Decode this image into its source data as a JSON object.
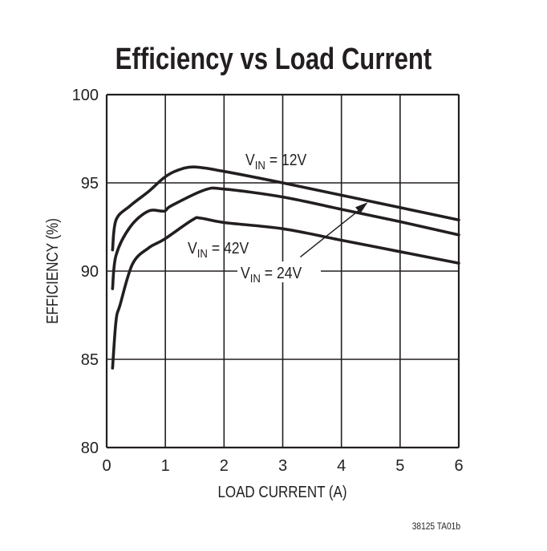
{
  "chart_data": {
    "type": "line",
    "title": "Efficiency vs Load Current",
    "xlabel": "LOAD CURRENT (A)",
    "ylabel": "EFFICIENCY (%)",
    "xlim": [
      0,
      6
    ],
    "ylim": [
      80,
      100
    ],
    "xticks": [
      "0",
      "1",
      "2",
      "3",
      "4",
      "5",
      "6"
    ],
    "yticks": [
      "80",
      "85",
      "90",
      "95",
      "100"
    ],
    "grid": true,
    "series": [
      {
        "name": "VIN = 12V",
        "label_main": "V",
        "label_sub": "IN",
        "label_rest": " = 12V",
        "x": [
          0.1,
          0.16,
          0.4,
          0.71,
          0.98,
          1.2,
          1.49,
          2.0,
          3.0,
          4.0,
          5.0,
          6.0
        ],
        "y": [
          91.2,
          92.9,
          93.7,
          94.5,
          95.3,
          95.7,
          95.9,
          95.65,
          95.0,
          94.3,
          93.6,
          92.9
        ]
      },
      {
        "name": "VIN = 24V",
        "label_main": "V",
        "label_sub": "IN",
        "label_rest": " = 24V",
        "x": [
          0.1,
          0.16,
          0.4,
          0.71,
          0.98,
          1.1,
          1.67,
          2.0,
          3.0,
          4.0,
          5.0,
          6.0
        ],
        "y": [
          89.0,
          90.9,
          92.5,
          93.4,
          93.4,
          93.7,
          94.6,
          94.65,
          94.2,
          93.5,
          92.8,
          92.05
        ]
      },
      {
        "name": "VIN = 42V",
        "label_main": "V",
        "label_sub": "IN",
        "label_rest": " = 42V",
        "x": [
          0.1,
          0.16,
          0.23,
          0.44,
          0.71,
          0.98,
          1.46,
          1.6,
          2.0,
          3.0,
          4.0,
          5.0,
          6.0
        ],
        "y": [
          84.5,
          87.2,
          88.1,
          90.4,
          91.3,
          91.8,
          92.9,
          93.0,
          92.75,
          92.4,
          91.75,
          91.1,
          90.45
        ]
      }
    ],
    "annotations": [
      {
        "text": "VIN = 24V",
        "arrow_from": [
          3.3,
          90.8
        ],
        "arrow_to": [
          4.45,
          93.9
        ]
      }
    ],
    "footnote": "38125 TA01b",
    "line_color": "#231f20"
  }
}
